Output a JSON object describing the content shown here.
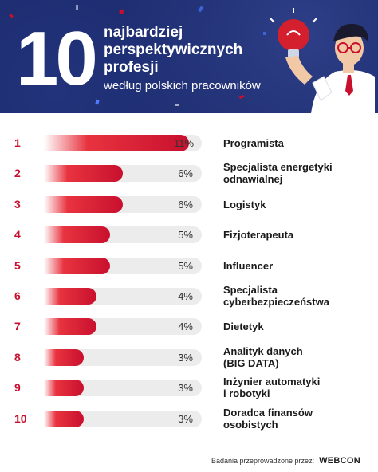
{
  "header": {
    "big_number": "10",
    "title_lines": [
      "najbardziej",
      "perspektywicznych",
      "profesji"
    ],
    "subtitle": "według polskich pracowników"
  },
  "colors": {
    "header_bg": "#1c2a6b",
    "bar": "#c8102e",
    "rank": "#c8102e",
    "track": "#ececec"
  },
  "icons": [
    "lightbulb-icon",
    "person-illustration"
  ],
  "chart_data": {
    "type": "bar",
    "orientation": "horizontal",
    "title": "10 najbardziej perspektywicznych profesji",
    "subtitle": "według polskich pracowników",
    "xlim": [
      0,
      12
    ],
    "grid": false,
    "ranks": [
      "1",
      "2",
      "3",
      "4",
      "5",
      "6",
      "7",
      "8",
      "9",
      "10"
    ],
    "categories": [
      [
        "Programista"
      ],
      [
        "Specjalista energetyki",
        "odnawialnej"
      ],
      [
        "Logistyk"
      ],
      [
        "Fizjoterapeuta"
      ],
      [
        "Influencer"
      ],
      [
        "Specjalista",
        "cyberbezpieczeństwa"
      ],
      [
        "Dietetyk"
      ],
      [
        "Analityk danych",
        "(BIG DATA)"
      ],
      [
        "Inżynier automatyki",
        "i robotyki"
      ],
      [
        "Doradca finansów",
        "osobistych"
      ]
    ],
    "values": [
      11,
      6,
      6,
      5,
      5,
      4,
      4,
      3,
      3,
      3
    ],
    "value_labels": [
      "11%",
      "6%",
      "6%",
      "5%",
      "5%",
      "4%",
      "4%",
      "3%",
      "3%",
      "3%"
    ]
  },
  "footer": {
    "text": "Badania przeprowadzone przez:",
    "brand": "WEBCON"
  }
}
